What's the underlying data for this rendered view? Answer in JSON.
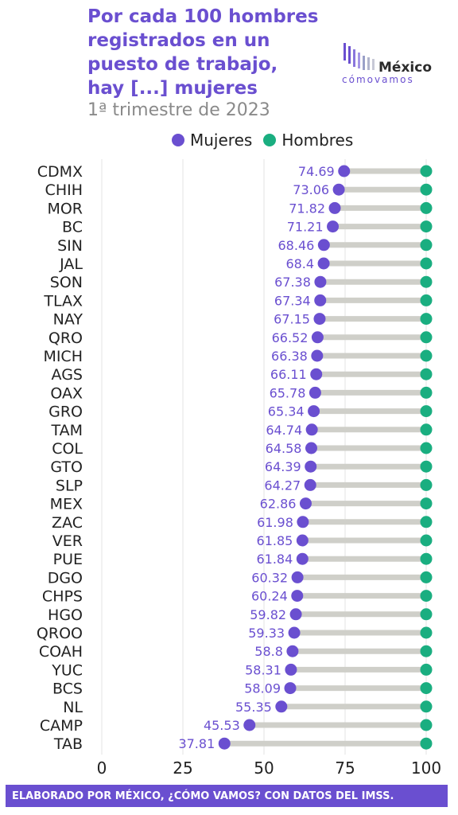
{
  "title_lines": [
    "Por cada 100 hombres",
    "registrados en un",
    "puesto de trabajo,",
    "hay [...] mujeres"
  ],
  "subtitle": "1ª trimestre de 2023",
  "logo": {
    "main": "México",
    "sub": "cómovamos"
  },
  "legend": {
    "mujeres": "Mujeres",
    "hombres": "Hombres"
  },
  "footer": "ELABORADO POR MÉXICO, ¿CÓMO VAMOS? CON DATOS DEL IMSS.",
  "colors": {
    "accent": "#6a4fd0",
    "mujeres": "#6a4fd0",
    "hombres": "#1aae80",
    "segment": "#cfcfc9"
  },
  "chart_data": {
    "type": "dumbbell",
    "categories": [
      "CDMX",
      "CHIH",
      "MOR",
      "BC",
      "SIN",
      "JAL",
      "SON",
      "TLAX",
      "NAY",
      "QRO",
      "MICH",
      "AGS",
      "OAX",
      "GRO",
      "TAM",
      "COL",
      "GTO",
      "SLP",
      "MEX",
      "ZAC",
      "VER",
      "PUE",
      "DGO",
      "CHPS",
      "HGO",
      "QROO",
      "COAH",
      "YUC",
      "BCS",
      "NL",
      "CAMP",
      "TAB"
    ],
    "series": [
      {
        "name": "Mujeres",
        "values": [
          74.69,
          73.06,
          71.82,
          71.21,
          68.46,
          68.4,
          67.38,
          67.34,
          67.15,
          66.52,
          66.38,
          66.11,
          65.78,
          65.34,
          64.74,
          64.58,
          64.39,
          64.27,
          62.86,
          61.98,
          61.85,
          61.84,
          60.32,
          60.24,
          59.82,
          59.33,
          58.8,
          58.31,
          58.09,
          55.35,
          45.53,
          37.81
        ]
      },
      {
        "name": "Hombres",
        "values": [
          100,
          100,
          100,
          100,
          100,
          100,
          100,
          100,
          100,
          100,
          100,
          100,
          100,
          100,
          100,
          100,
          100,
          100,
          100,
          100,
          100,
          100,
          100,
          100,
          100,
          100,
          100,
          100,
          100,
          100,
          100,
          100
        ]
      }
    ],
    "data_labels": [
      "74.69",
      "73.06",
      "71.82",
      "71.21",
      "68.46",
      "68.4",
      "67.38",
      "67.34",
      "67.15",
      "66.52",
      "66.38",
      "66.11",
      "65.78",
      "65.34",
      "64.74",
      "64.58",
      "64.39",
      "64.27",
      "62.86",
      "61.98",
      "61.85",
      "61.84",
      "60.32",
      "60.24",
      "59.82",
      "59.33",
      "58.8",
      "58.31",
      "58.09",
      "55.35",
      "45.53",
      "37.81"
    ],
    "xticks": [
      "0",
      "25",
      "50",
      "75",
      "100"
    ],
    "xlim": [
      0,
      100
    ],
    "grid": true,
    "legend_position": "top"
  }
}
